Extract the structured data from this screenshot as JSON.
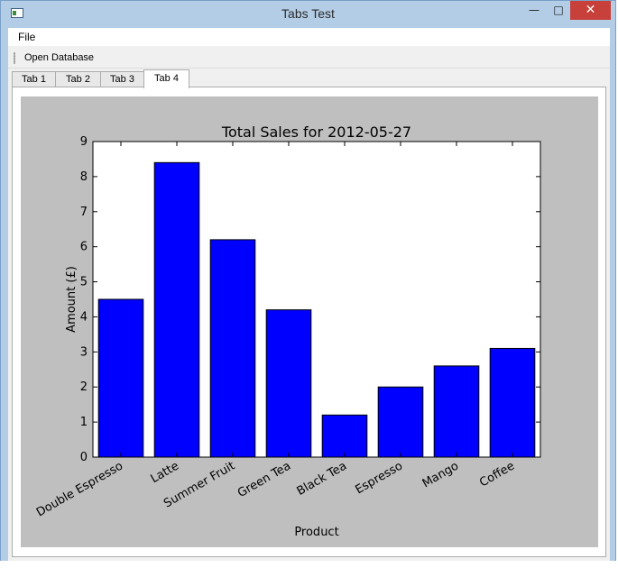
{
  "window": {
    "title": "Tabs Test",
    "minimize_glyph": "—",
    "maximize_glyph": "□",
    "close_glyph": "✕"
  },
  "menubar": {
    "file_label": "File"
  },
  "toolbar": {
    "open_database_label": "Open Database"
  },
  "tabs": [
    {
      "label": "Tab 1",
      "active": false
    },
    {
      "label": "Tab 2",
      "active": false
    },
    {
      "label": "Tab 3",
      "active": false
    },
    {
      "label": "Tab 4",
      "active": true
    }
  ],
  "colors": {
    "bar": "#0000ff",
    "figure_background": "#bfbfbf",
    "window_frame": "#b3cde6",
    "close_button": "#c7403a"
  },
  "chart_data": {
    "type": "bar",
    "title": "Total Sales for 2012-05-27",
    "xlabel": "Product",
    "ylabel": "Amount (£)",
    "categories": [
      "Double Espresso",
      "Latte",
      "Summer Fruit",
      "Green Tea",
      "Black Tea",
      "Espresso",
      "Mango",
      "Coffee"
    ],
    "values": [
      4.5,
      8.4,
      6.2,
      4.2,
      1.2,
      2.0,
      2.6,
      3.1
    ],
    "ylim": [
      0,
      9
    ],
    "yticks": [
      0,
      1,
      2,
      3,
      4,
      5,
      6,
      7,
      8,
      9
    ],
    "grid": false,
    "legend": "none",
    "tick_label_rotation": "rotated"
  }
}
